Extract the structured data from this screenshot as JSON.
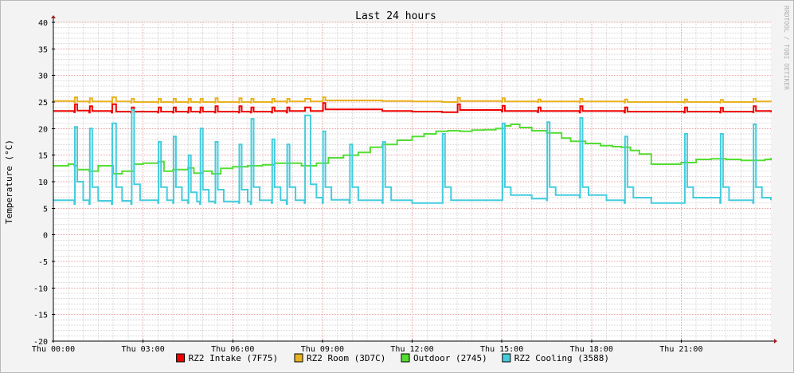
{
  "chart_data": {
    "type": "line",
    "title": "Last 24 hours",
    "ylabel": "Temperature (°C)",
    "watermark": "RRDTOOL / TOBI OETIKER",
    "ylim": [
      -20,
      40
    ],
    "y_ticks": [
      40,
      35,
      30,
      25,
      20,
      15,
      10,
      5,
      0,
      -5,
      -10,
      -15,
      -20
    ],
    "x_range_hours": [
      0,
      24
    ],
    "x_ticks": [
      {
        "h": 0,
        "label": "Thu 00:00"
      },
      {
        "h": 3,
        "label": "Thu 03:00"
      },
      {
        "h": 6,
        "label": "Thu 06:00"
      },
      {
        "h": 9,
        "label": "Thu 09:00"
      },
      {
        "h": 12,
        "label": "Thu 12:00"
      },
      {
        "h": 15,
        "label": "Thu 15:00"
      },
      {
        "h": 18,
        "label": "Thu 18:00"
      },
      {
        "h": 21,
        "label": "Thu 21:00"
      }
    ],
    "series": [
      {
        "name": "RZ2 Intake (7F75)",
        "color": "#ee0000",
        "x": [
          0.0,
          0.7,
          0.72,
          0.8,
          1.2,
          1.22,
          1.3,
          1.95,
          1.97,
          2.1,
          2.6,
          2.62,
          2.7,
          3.5,
          3.52,
          3.6,
          4.0,
          4.02,
          4.1,
          4.5,
          4.52,
          4.6,
          4.9,
          4.92,
          5.0,
          5.4,
          5.42,
          5.5,
          6.2,
          6.22,
          6.3,
          6.6,
          6.62,
          6.7,
          7.3,
          7.32,
          7.4,
          7.8,
          7.82,
          7.9,
          8.4,
          8.42,
          8.6,
          9.0,
          9.02,
          9.1,
          11.0,
          12.0,
          13.0,
          13.5,
          13.52,
          13.6,
          15.0,
          15.02,
          15.1,
          16.2,
          16.22,
          16.3,
          17.6,
          17.62,
          17.7,
          19.1,
          19.12,
          19.2,
          21.1,
          21.12,
          21.2,
          22.3,
          22.32,
          22.4,
          23.4,
          23.42,
          23.5,
          24.0
        ],
        "y": [
          23.3,
          23.1,
          24.6,
          23.4,
          23.0,
          24.2,
          23.3,
          23.0,
          24.6,
          23.2,
          23.0,
          24.0,
          23.2,
          23.0,
          24.0,
          23.2,
          23.0,
          24.0,
          23.2,
          23.0,
          24.0,
          23.2,
          23.0,
          24.0,
          23.2,
          23.0,
          24.2,
          23.2,
          23.0,
          24.2,
          23.2,
          23.0,
          24.0,
          23.2,
          23.0,
          24.0,
          23.3,
          23.0,
          24.0,
          23.3,
          23.3,
          24.0,
          23.3,
          23.4,
          24.8,
          23.6,
          23.3,
          23.2,
          23.1,
          23.1,
          24.6,
          23.5,
          23.2,
          24.3,
          23.3,
          23.1,
          24.0,
          23.3,
          23.0,
          24.2,
          23.3,
          23.0,
          24.0,
          23.2,
          23.0,
          24.0,
          23.2,
          23.0,
          23.9,
          23.2,
          23.1,
          24.2,
          23.3,
          23.1
        ]
      },
      {
        "name": "RZ2 Room (3D7C)",
        "color": "#e8b320",
        "x": [
          0.0,
          0.7,
          0.72,
          0.8,
          1.2,
          1.22,
          1.3,
          1.95,
          1.97,
          2.1,
          2.6,
          2.62,
          2.7,
          3.5,
          3.52,
          3.6,
          4.0,
          4.02,
          4.1,
          4.5,
          4.52,
          4.6,
          4.9,
          4.92,
          5.0,
          5.4,
          5.42,
          5.5,
          6.2,
          6.22,
          6.3,
          6.6,
          6.62,
          6.7,
          7.3,
          7.32,
          7.4,
          7.8,
          7.82,
          7.9,
          8.4,
          8.42,
          8.6,
          9.0,
          9.02,
          9.1,
          11.0,
          12.0,
          13.0,
          13.5,
          13.52,
          13.6,
          15.0,
          15.02,
          15.1,
          16.2,
          16.22,
          16.3,
          17.6,
          17.62,
          17.7,
          19.1,
          19.12,
          19.2,
          21.1,
          21.12,
          21.2,
          22.3,
          22.32,
          22.4,
          23.4,
          23.42,
          23.5,
          24.0
        ],
        "y": [
          25.2,
          25.0,
          25.9,
          25.1,
          24.9,
          25.7,
          25.1,
          24.9,
          25.9,
          25.1,
          24.9,
          25.6,
          25.0,
          24.9,
          25.6,
          25.0,
          24.9,
          25.6,
          25.0,
          24.9,
          25.6,
          25.0,
          24.9,
          25.6,
          25.0,
          24.9,
          25.7,
          25.0,
          24.9,
          25.7,
          25.0,
          24.9,
          25.6,
          25.0,
          24.9,
          25.6,
          25.1,
          24.9,
          25.6,
          25.1,
          25.1,
          25.6,
          25.1,
          25.2,
          25.9,
          25.3,
          25.2,
          25.1,
          25.0,
          25.0,
          25.8,
          25.2,
          25.0,
          25.7,
          25.1,
          25.0,
          25.5,
          25.1,
          24.9,
          25.6,
          25.1,
          24.9,
          25.5,
          25.0,
          24.9,
          25.5,
          25.0,
          24.9,
          25.4,
          25.0,
          25.0,
          25.6,
          25.1,
          25.0
        ]
      },
      {
        "name": "Outdoor (2745)",
        "color": "#55dd33",
        "x": [
          0.0,
          0.5,
          0.7,
          0.8,
          1.2,
          1.5,
          2.0,
          2.3,
          2.7,
          3.0,
          3.5,
          3.7,
          4.0,
          4.5,
          4.7,
          5.0,
          5.3,
          5.6,
          6.0,
          6.5,
          7.0,
          7.4,
          7.8,
          8.3,
          8.8,
          9.2,
          9.7,
          10.2,
          10.6,
          11.0,
          11.5,
          12.0,
          12.4,
          12.8,
          13.2,
          13.6,
          14.0,
          14.4,
          14.8,
          15.1,
          15.3,
          15.6,
          16.0,
          16.5,
          17.0,
          17.3,
          17.8,
          18.3,
          18.7,
          19.0,
          19.3,
          19.6,
          20.0,
          20.5,
          21.0,
          21.5,
          22.0,
          22.5,
          23.0,
          23.4,
          23.8,
          24.0
        ],
        "y": [
          13.0,
          13.3,
          13.0,
          12.3,
          12.0,
          13.0,
          11.5,
          12.0,
          13.3,
          13.5,
          13.8,
          12.0,
          12.3,
          12.6,
          11.6,
          12.0,
          11.5,
          12.5,
          12.8,
          13.0,
          13.2,
          13.5,
          13.5,
          13.0,
          13.5,
          14.5,
          15.0,
          15.5,
          16.5,
          17.0,
          17.8,
          18.5,
          19.0,
          19.5,
          19.6,
          19.5,
          19.7,
          19.8,
          20.0,
          20.5,
          20.8,
          20.2,
          19.6,
          19.2,
          18.2,
          17.6,
          17.2,
          16.8,
          16.6,
          16.5,
          15.9,
          15.2,
          13.3,
          13.3,
          13.6,
          14.2,
          14.3,
          14.2,
          14.0,
          14.0,
          14.2,
          14.5
        ]
      },
      {
        "name": "RZ2 Cooling (3588)",
        "color": "#44ccdd",
        "x": [
          0.0,
          0.7,
          0.72,
          0.8,
          1.0,
          1.2,
          1.22,
          1.3,
          1.5,
          1.95,
          1.97,
          2.1,
          2.3,
          2.6,
          2.62,
          2.7,
          2.9,
          3.5,
          3.52,
          3.6,
          3.8,
          4.0,
          4.02,
          4.1,
          4.3,
          4.5,
          4.52,
          4.6,
          4.8,
          4.9,
          4.92,
          5.0,
          5.2,
          5.4,
          5.42,
          5.5,
          5.7,
          6.2,
          6.22,
          6.3,
          6.5,
          6.6,
          6.62,
          6.7,
          6.9,
          7.3,
          7.32,
          7.4,
          7.6,
          7.8,
          7.82,
          7.9,
          8.1,
          8.4,
          8.42,
          8.6,
          8.8,
          9.0,
          9.02,
          9.1,
          9.3,
          9.9,
          9.92,
          10.0,
          10.2,
          11.0,
          11.02,
          11.1,
          11.3,
          12.0,
          13.0,
          13.02,
          13.1,
          13.3,
          14.0,
          15.0,
          15.02,
          15.1,
          15.3,
          16.0,
          16.5,
          16.52,
          16.6,
          16.8,
          17.6,
          17.62,
          17.7,
          17.9,
          18.5,
          19.1,
          19.12,
          19.2,
          19.4,
          20.0,
          21.1,
          21.12,
          21.2,
          21.4,
          22.3,
          22.32,
          22.4,
          22.6,
          23.4,
          23.42,
          23.5,
          23.7,
          24.0
        ],
        "y": [
          6.5,
          5.8,
          20.3,
          10.0,
          6.5,
          5.8,
          20.0,
          9.0,
          6.4,
          5.8,
          21.0,
          9.0,
          6.4,
          5.8,
          23.5,
          9.5,
          6.5,
          6.0,
          17.5,
          9.0,
          6.5,
          6.0,
          18.5,
          9.0,
          6.5,
          6.0,
          15.0,
          8.0,
          6.3,
          5.8,
          20.0,
          8.5,
          6.3,
          6.0,
          17.5,
          8.5,
          6.3,
          6.0,
          17.0,
          8.5,
          6.3,
          5.8,
          21.8,
          9.0,
          6.5,
          6.0,
          18.0,
          9.0,
          6.5,
          5.8,
          17.0,
          9.0,
          6.5,
          6.0,
          22.5,
          9.5,
          7.0,
          6.0,
          19.5,
          9.0,
          6.6,
          6.0,
          17.0,
          9.0,
          6.5,
          6.0,
          17.5,
          9.0,
          6.5,
          6.0,
          6.0,
          19.0,
          9.0,
          6.5,
          6.5,
          6.5,
          21.0,
          9.0,
          7.5,
          6.8,
          6.5,
          21.2,
          9.0,
          7.5,
          7.0,
          22.0,
          9.0,
          7.5,
          6.5,
          6.0,
          18.5,
          9.0,
          7.0,
          6.0,
          6.0,
          19.0,
          9.0,
          7.0,
          6.0,
          19.0,
          9.0,
          6.5,
          6.0,
          20.8,
          9.0,
          7.0,
          6.5
        ]
      }
    ]
  }
}
